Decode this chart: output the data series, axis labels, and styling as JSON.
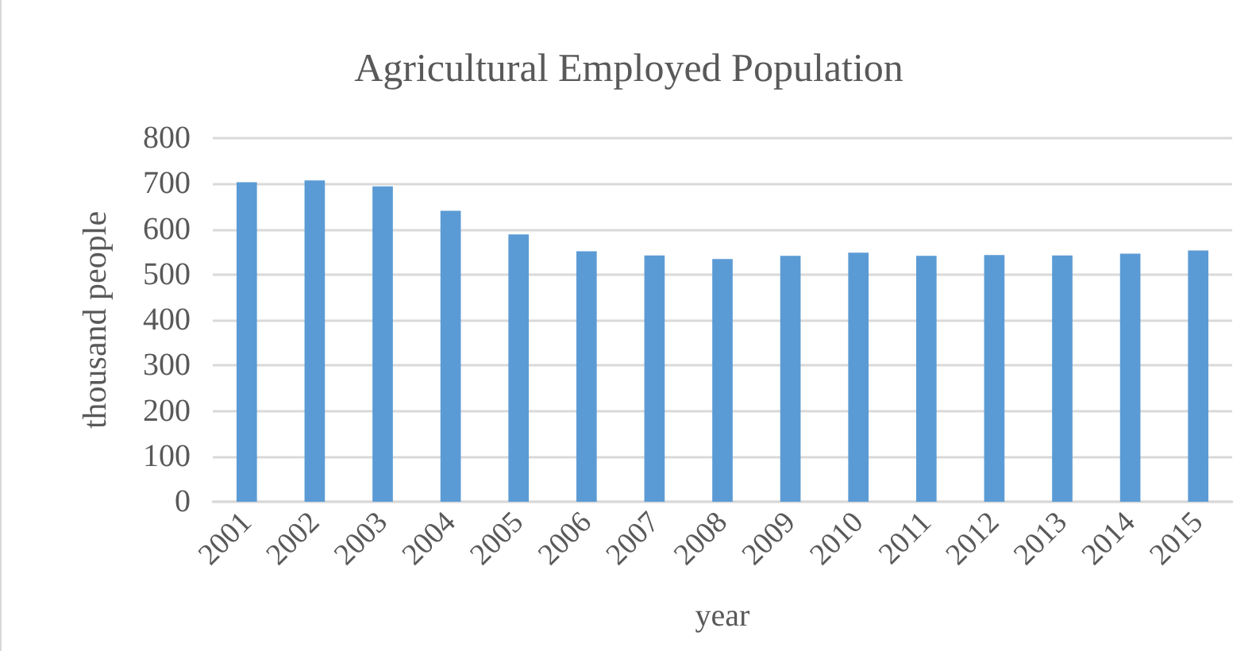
{
  "chart_data": {
    "type": "bar",
    "title": "Agricultural Employed Population",
    "xlabel": "year",
    "ylabel": "thousand people",
    "categories": [
      "2001",
      "2002",
      "2003",
      "2004",
      "2005",
      "2006",
      "2007",
      "2008",
      "2009",
      "2010",
      "2011",
      "2012",
      "2013",
      "2014",
      "2015"
    ],
    "values": [
      703,
      707,
      694,
      640,
      588,
      551,
      542,
      534,
      541,
      548,
      541,
      543,
      542,
      546,
      553
    ],
    "color": "#5b9bd5",
    "ylim": [
      0,
      800
    ],
    "yticks": [
      0,
      100,
      200,
      300,
      400,
      500,
      600,
      700,
      800
    ],
    "grid": "y"
  }
}
